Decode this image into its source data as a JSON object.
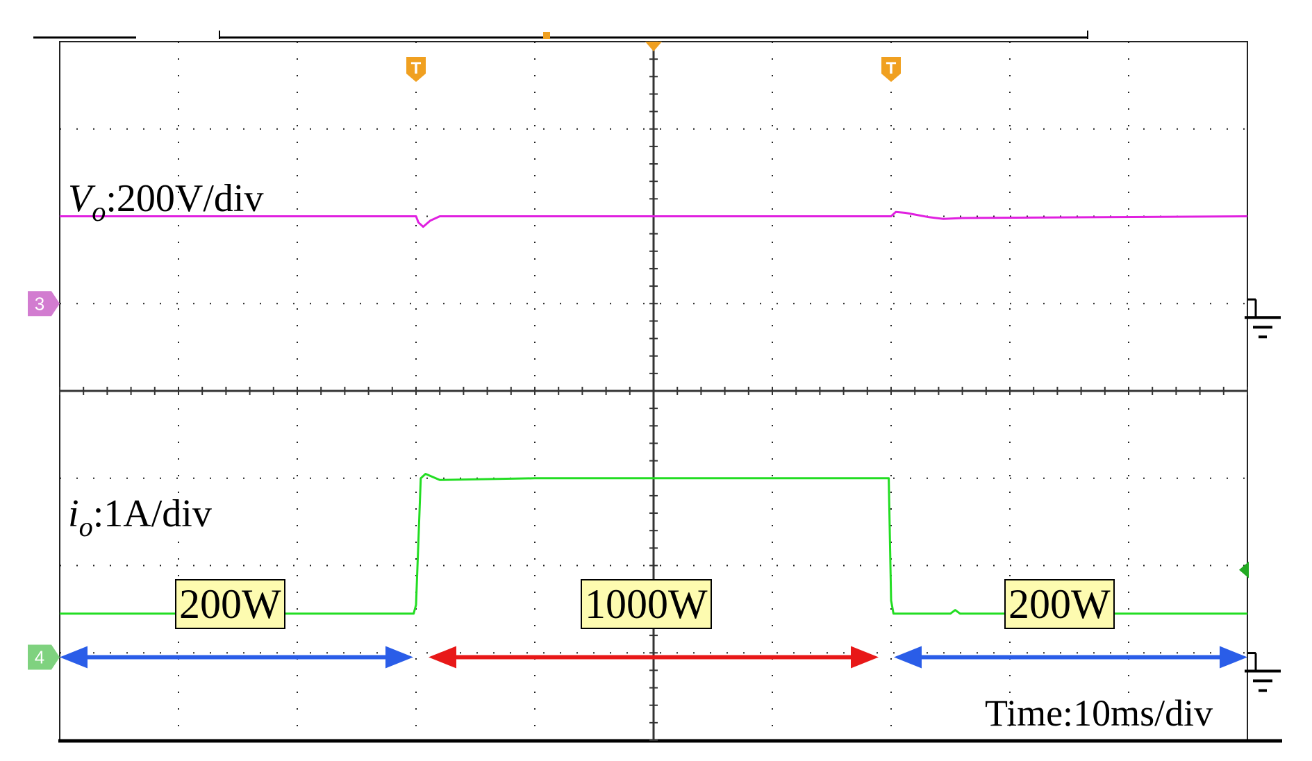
{
  "chart_data": {
    "type": "line",
    "title": "",
    "xlabel": "",
    "ylabel": "",
    "xlim": [
      0,
      50
    ],
    "divisions": {
      "x": 10,
      "y": 8
    },
    "series": [
      {
        "name": "V_o",
        "scale_label": "200V/div",
        "color": "#e020e0",
        "x": [
          0,
          15,
          15.1,
          15.3,
          15.6,
          16.0,
          16.5,
          35,
          35.2,
          35.6,
          36.0,
          36.6,
          37.2,
          38.0,
          50
        ],
        "y": [
          2.0,
          2.0,
          1.93,
          1.88,
          1.95,
          2.0,
          2.0,
          2.0,
          2.05,
          2.04,
          2.02,
          1.99,
          1.97,
          1.98,
          2.0
        ]
      },
      {
        "name": "i_o",
        "scale_label": "1A/div",
        "color": "#22dd22",
        "x": [
          0,
          14.9,
          15.0,
          15.2,
          15.4,
          16.0,
          20,
          25,
          30,
          34.9,
          35.0,
          35.1,
          37.5,
          37.7,
          37.9,
          50
        ],
        "y": [
          -2.55,
          -2.55,
          -2.45,
          -1.0,
          -0.95,
          -1.02,
          -1.0,
          -1.0,
          -1.0,
          -1.0,
          -2.4,
          -2.55,
          -2.55,
          -2.51,
          -2.55,
          -2.55
        ]
      }
    ],
    "regions": [
      {
        "label": "200W",
        "x": [
          0,
          15
        ],
        "color": "#2a5de8"
      },
      {
        "label": "1000W",
        "x": [
          15,
          35
        ],
        "color": "#e81818"
      },
      {
        "label": "200W",
        "x": [
          35,
          50
        ],
        "color": "#2a5de8"
      }
    ],
    "trigger_markers": [
      15,
      35
    ],
    "channel_markers": [
      {
        "label": "3",
        "color": "#d27cd0"
      },
      {
        "label": "4",
        "color": "#7fd27f"
      }
    ],
    "annotations": {
      "vo_symbol": "V",
      "vo_subscript": "o",
      "vo_scale": ":200V/div",
      "io_symbol": "i",
      "io_subscript": "o",
      "io_scale": ":1A/div",
      "time_label": "Time:10ms/div"
    },
    "grid": true,
    "background": "#ffffff",
    "grid_color": "#222222"
  }
}
